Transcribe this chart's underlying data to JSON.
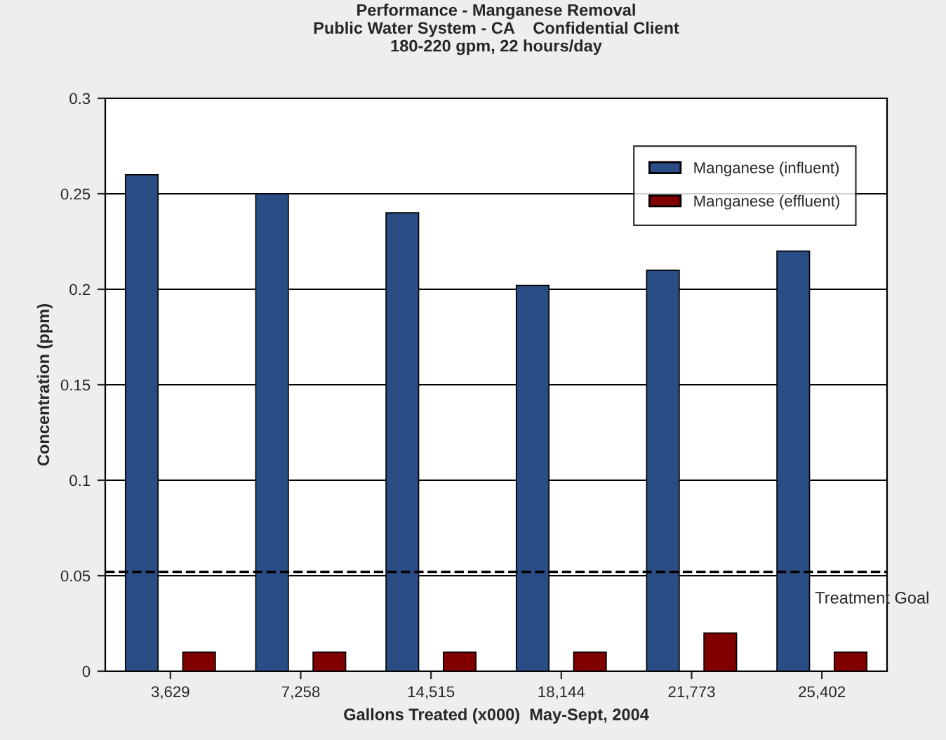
{
  "chart_data": {
    "type": "bar",
    "title": "Performance - Manganese Removal\nPublic Water System - CA    Confidential Client\n180-220 gpm, 22 hours/day",
    "xlabel": "Gallons Treated (x000)  May-Sept, 2004",
    "ylabel": "Concentration (ppm)",
    "categories": [
      "3,629",
      "7,258",
      "14,515",
      "18,144",
      "21,773",
      "25,402"
    ],
    "series": [
      {
        "name": "Manganese (influent)",
        "color": "#2a4d85",
        "values": [
          0.26,
          0.25,
          0.24,
          0.202,
          0.21,
          0.22
        ]
      },
      {
        "name": "Manganese (effluent)",
        "color": "#800000",
        "values": [
          0.01,
          0.01,
          0.01,
          0.01,
          0.02,
          0.01
        ]
      }
    ],
    "ylim": [
      0,
      0.3
    ],
    "yticks": [
      0,
      0.05,
      0.1,
      0.15,
      0.2,
      0.25,
      0.3
    ],
    "ref_lines": [
      {
        "axis": "y",
        "value": 0.052,
        "label": "Treatment Goal",
        "color": "#000000",
        "line_style": "dashed"
      }
    ],
    "grid": "y",
    "legend": "top right"
  }
}
